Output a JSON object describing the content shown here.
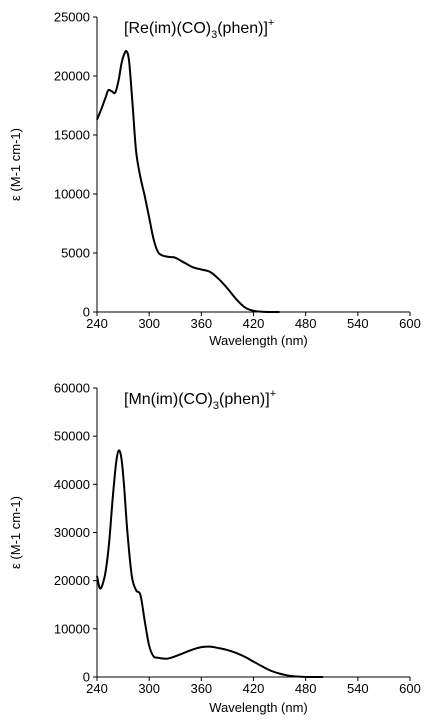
{
  "chart_data": [
    {
      "type": "line",
      "title": "[Re(im)(CO)3(phen)]+",
      "title_parts": {
        "main": "[Re(im)(CO)",
        "sub": "3",
        "rest": "(phen)]",
        "sup": "+"
      },
      "xlabel": "Wavelength (nm)",
      "ylabel": "ε (M-1 cm-1)",
      "xlim": [
        240,
        600
      ],
      "ylim": [
        0,
        25000
      ],
      "xticks": [
        240,
        300,
        360,
        420,
        480,
        540,
        600
      ],
      "yticks": [
        0,
        5000,
        10000,
        15000,
        20000,
        25000
      ],
      "grid": false,
      "series": [
        {
          "x": [
            240,
            245,
            250,
            253,
            257,
            261,
            265,
            268,
            271,
            274,
            277,
            281,
            285,
            290,
            295,
            300,
            305,
            310,
            315,
            320,
            325,
            330,
            340,
            350,
            360,
            370,
            380,
            390,
            400,
            410,
            420,
            430,
            440,
            450
          ],
          "y": [
            16300,
            17200,
            18200,
            18800,
            18700,
            18600,
            19700,
            21000,
            21800,
            22100,
            21200,
            17500,
            13600,
            11400,
            9800,
            8000,
            6200,
            5100,
            4800,
            4700,
            4650,
            4600,
            4200,
            3800,
            3600,
            3400,
            2800,
            2000,
            1100,
            400,
            100,
            20,
            0,
            0
          ]
        }
      ]
    },
    {
      "type": "line",
      "title": "[Mn(im)(CO)3(phen)]+",
      "title_parts": {
        "main": "[Mn(im)(CO)",
        "sub": "3",
        "rest": "(phen)]",
        "sup": "+"
      },
      "xlabel": "Wavelength (nm)",
      "ylabel": "ε (M-1 cm-1)",
      "xlim": [
        240,
        600
      ],
      "ylim": [
        0,
        60000
      ],
      "xticks": [
        240,
        300,
        360,
        420,
        480,
        540,
        600
      ],
      "yticks": [
        0,
        10000,
        20000,
        30000,
        40000,
        50000,
        60000
      ],
      "grid": false,
      "series": [
        {
          "x": [
            240,
            243,
            246,
            250,
            254,
            258,
            262,
            265,
            268,
            271,
            275,
            280,
            285,
            290,
            295,
            300,
            305,
            310,
            320,
            330,
            340,
            350,
            360,
            370,
            380,
            390,
            400,
            410,
            420,
            430,
            440,
            450,
            460,
            470,
            480,
            490,
            500
          ],
          "y": [
            21000,
            18500,
            19000,
            22000,
            28000,
            37000,
            44500,
            47000,
            45500,
            40000,
            30000,
            21000,
            18000,
            17000,
            11500,
            6500,
            4300,
            4000,
            3800,
            4300,
            5000,
            5700,
            6200,
            6300,
            6000,
            5600,
            5000,
            4200,
            3200,
            2200,
            1300,
            700,
            300,
            100,
            0,
            0,
            0
          ]
        }
      ]
    }
  ]
}
